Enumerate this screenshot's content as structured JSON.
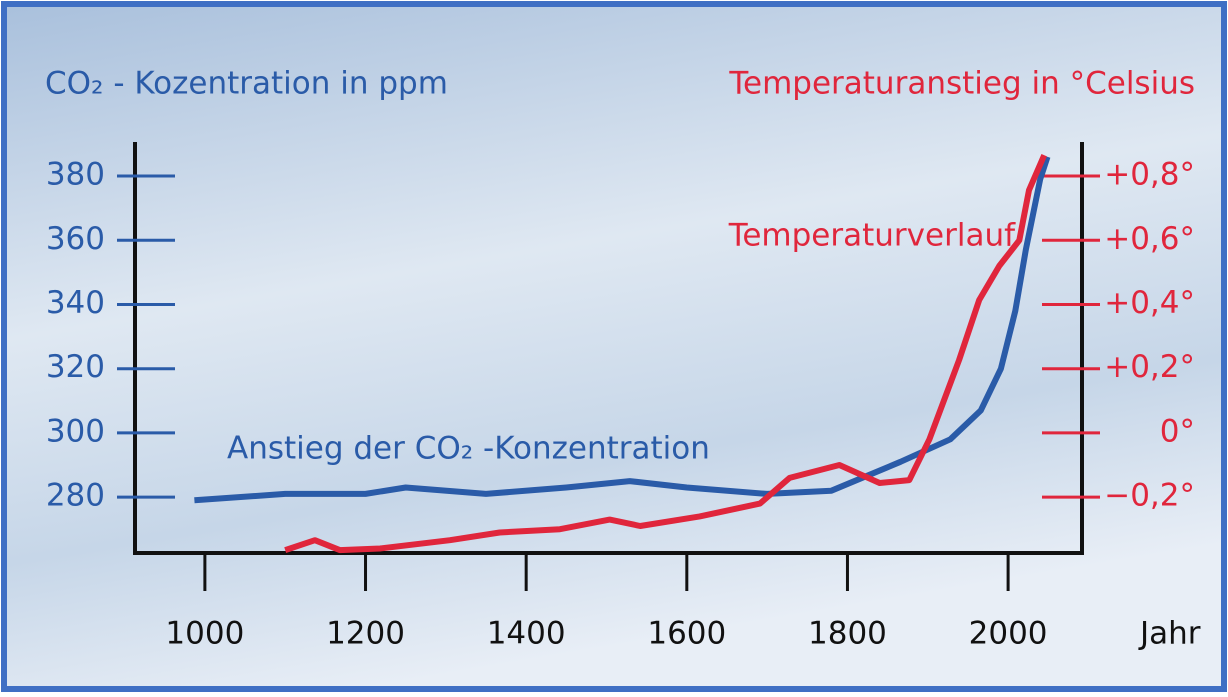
{
  "chart_data": {
    "type": "line",
    "y_title": "CO₂ - Kozentration in ppm",
    "y2_title": "Temperaturanstieg in °Celsius",
    "x_title": "Jahr",
    "xlim": [
      913,
      2092
    ],
    "xticks": [
      1000,
      1200,
      1400,
      1600,
      1800,
      2000
    ],
    "ylim": [
      262.6,
      390.6
    ],
    "yticks": [
      280,
      300,
      320,
      340,
      360,
      380
    ],
    "y2lim": [
      -0.374,
      0.906
    ],
    "y2ticks": [
      {
        "value": -0.2,
        "label": "−0,2°"
      },
      {
        "value": 0,
        "label": "0°"
      },
      {
        "value": 0.2,
        "label": "+0,2°"
      },
      {
        "value": 0.4,
        "label": "+0,4°"
      },
      {
        "value": 0.6,
        "label": "+0,6°"
      },
      {
        "value": 0.8,
        "label": "+0,8°"
      }
    ],
    "series": [
      {
        "name": "Anstieg der CO₂ -Konzentration",
        "color": "#2a5ba8",
        "x": [
          987,
          1100,
          1200,
          1250,
          1350,
          1450,
          1529,
          1600,
          1700,
          1780,
          1866,
          1928,
          1966,
          1991,
          2009,
          2022,
          2040,
          2049
        ],
        "values": [
          279,
          281,
          281,
          283,
          281,
          283,
          285,
          283,
          281,
          282,
          291,
          298,
          307,
          320,
          338,
          357,
          379,
          386
        ]
      },
      {
        "name": "Temperaturverlauf",
        "color": "#e0263c",
        "axis": "y2",
        "x": [
          1100,
          1137,
          1168,
          1218,
          1305,
          1367,
          1442,
          1504,
          1542,
          1616,
          1691,
          1728,
          1790,
          1840,
          1877,
          1902,
          1939,
          1964,
          1989,
          2014,
          2026,
          2045
        ],
        "values": [
          -0.365,
          -0.334,
          -0.365,
          -0.36,
          -0.334,
          -0.31,
          -0.3,
          -0.27,
          -0.29,
          -0.26,
          -0.22,
          -0.14,
          -0.1,
          -0.156,
          -0.147,
          -0.02,
          0.227,
          0.414,
          0.52,
          0.6,
          0.756,
          0.865
        ]
      }
    ]
  }
}
